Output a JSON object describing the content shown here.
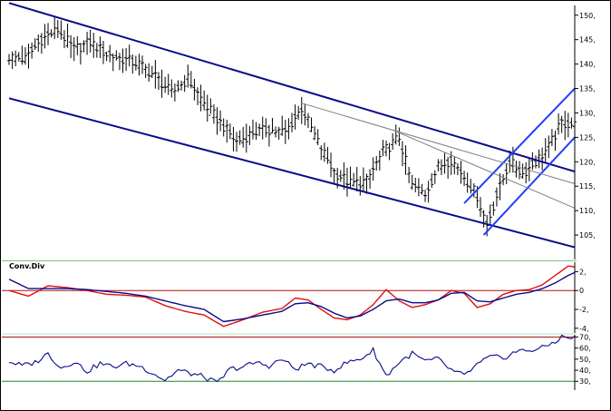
{
  "chart_data": [
    {
      "type": "ohlc",
      "title": "",
      "ylim": [
        100,
        152
      ],
      "y_ticks": [
        "150,",
        "145,",
        "140,",
        "135,",
        "130,",
        "125,",
        "120,",
        "115,",
        "110,",
        "105,"
      ],
      "y_tick_values": [
        150,
        145,
        140,
        135,
        130,
        125,
        120,
        115,
        110,
        105
      ],
      "anchors": [
        [
          0,
          141.5
        ],
        [
          5,
          141
        ],
        [
          10,
          145
        ],
        [
          15,
          147
        ],
        [
          20,
          143
        ],
        [
          25,
          144.5
        ],
        [
          30,
          142
        ],
        [
          35,
          141
        ],
        [
          40,
          140
        ],
        [
          45,
          137.5
        ],
        [
          50,
          134
        ],
        [
          55,
          137
        ],
        [
          60,
          132
        ],
        [
          65,
          128
        ],
        [
          70,
          124
        ],
        [
          75,
          126
        ],
        [
          80,
          126.5
        ],
        [
          85,
          126
        ],
        [
          90,
          131
        ],
        [
          95,
          124
        ],
        [
          100,
          118
        ],
        [
          105,
          115.5
        ],
        [
          110,
          116
        ],
        [
          115,
          122
        ],
        [
          120,
          125
        ],
        [
          124,
          115
        ],
        [
          128,
          113.5
        ],
        [
          132,
          119
        ],
        [
          136,
          120.5
        ],
        [
          140,
          117
        ],
        [
          144,
          113
        ],
        [
          147,
          107
        ],
        [
          150,
          113
        ],
        [
          154,
          120
        ],
        [
          158,
          117.5
        ],
        [
          162,
          120
        ],
        [
          166,
          123
        ],
        [
          170,
          128
        ],
        [
          174,
          127.5
        ]
      ],
      "channels": [
        {
          "name": "main-upper",
          "color": "#0a0a8a",
          "points": [
            [
              0,
              152.5
            ],
            [
              174,
              118
            ]
          ]
        },
        {
          "name": "main-lower",
          "color": "#0a0a8a",
          "points": [
            [
              0,
              133
            ],
            [
              174,
              102.5
            ]
          ]
        },
        {
          "name": "short-upper",
          "color": "#1f3fff",
          "points": [
            [
              140,
              111.5
            ],
            [
              174,
              135
            ]
          ]
        },
        {
          "name": "short-lower",
          "color": "#1f3fff",
          "points": [
            [
              146,
              105
            ],
            [
              174,
              125
            ]
          ]
        },
        {
          "name": "trend-1",
          "color": "#808080",
          "points": [
            [
              90,
              132
            ],
            [
              174,
              115.5
            ]
          ]
        },
        {
          "name": "trend-2",
          "color": "#808080",
          "points": [
            [
              118,
              126.5
            ],
            [
              174,
              110.5
            ]
          ]
        }
      ]
    },
    {
      "type": "line",
      "title": "Conv.Div",
      "ylim": [
        -4.5,
        3
      ],
      "y_ticks": [
        "2,",
        "0",
        "-2,",
        "-4,"
      ],
      "y_tick_values": [
        2,
        0,
        -2,
        -4
      ],
      "reference_lines": [
        {
          "value": 0,
          "color": "#b01515"
        }
      ],
      "series": [
        {
          "color": "#e01010",
          "anchors": [
            [
              0,
              0
            ],
            [
              6,
              -0.6
            ],
            [
              12,
              0.5
            ],
            [
              18,
              0.3
            ],
            [
              24,
              0
            ],
            [
              30,
              -0.4
            ],
            [
              36,
              -0.5
            ],
            [
              42,
              -0.7
            ],
            [
              48,
              -1.6
            ],
            [
              54,
              -2.2
            ],
            [
              60,
              -2.6
            ],
            [
              66,
              -3.8
            ],
            [
              72,
              -3.1
            ],
            [
              78,
              -2.3
            ],
            [
              84,
              -1.9
            ],
            [
              88,
              -0.8
            ],
            [
              92,
              -1.0
            ],
            [
              96,
              -2.0
            ],
            [
              100,
              -2.9
            ],
            [
              104,
              -3.1
            ],
            [
              108,
              -2.6
            ],
            [
              112,
              -1.5
            ],
            [
              116,
              0.1
            ],
            [
              120,
              -1.1
            ],
            [
              124,
              -1.8
            ],
            [
              128,
              -1.5
            ],
            [
              132,
              -1.0
            ],
            [
              136,
              0.0
            ],
            [
              140,
              -0.3
            ],
            [
              144,
              -1.8
            ],
            [
              148,
              -1.4
            ],
            [
              152,
              -0.4
            ],
            [
              156,
              0.0
            ],
            [
              160,
              0.1
            ],
            [
              164,
              0.6
            ],
            [
              168,
              1.6
            ],
            [
              172,
              2.6
            ],
            [
              174,
              2.5
            ]
          ]
        },
        {
          "color": "#0a0a8a",
          "anchors": [
            [
              0,
              1.2
            ],
            [
              6,
              0.2
            ],
            [
              12,
              0.2
            ],
            [
              18,
              0.2
            ],
            [
              24,
              0.1
            ],
            [
              30,
              -0.1
            ],
            [
              36,
              -0.3
            ],
            [
              42,
              -0.6
            ],
            [
              48,
              -1.1
            ],
            [
              54,
              -1.6
            ],
            [
              60,
              -2.0
            ],
            [
              66,
              -3.3
            ],
            [
              72,
              -3.0
            ],
            [
              78,
              -2.6
            ],
            [
              84,
              -2.2
            ],
            [
              88,
              -1.4
            ],
            [
              92,
              -1.3
            ],
            [
              96,
              -1.7
            ],
            [
              100,
              -2.4
            ],
            [
              104,
              -2.9
            ],
            [
              108,
              -2.7
            ],
            [
              112,
              -2.0
            ],
            [
              116,
              -1.1
            ],
            [
              120,
              -0.9
            ],
            [
              124,
              -1.3
            ],
            [
              128,
              -1.3
            ],
            [
              132,
              -1.0
            ],
            [
              136,
              -0.3
            ],
            [
              140,
              -0.2
            ],
            [
              144,
              -1.1
            ],
            [
              148,
              -1.2
            ],
            [
              152,
              -0.8
            ],
            [
              156,
              -0.4
            ],
            [
              160,
              -0.2
            ],
            [
              164,
              0.2
            ],
            [
              168,
              0.8
            ],
            [
              172,
              1.6
            ],
            [
              174,
              1.9
            ]
          ]
        }
      ]
    },
    {
      "type": "line",
      "title": "",
      "ylim": [
        22,
        72
      ],
      "y_ticks": [
        "70,",
        "60,",
        "50,",
        "40,",
        "30,"
      ],
      "y_tick_values": [
        70,
        60,
        50,
        40,
        30
      ],
      "reference_lines": [
        {
          "value": 70,
          "color": "#b01515"
        },
        {
          "value": 30,
          "color": "#1c8a1c"
        }
      ],
      "series": [
        {
          "color": "#0a0a8a",
          "anchors": [
            [
              0,
              48
            ],
            [
              4,
              44
            ],
            [
              8,
              47
            ],
            [
              12,
              55
            ],
            [
              16,
              42
            ],
            [
              20,
              48
            ],
            [
              24,
              39
            ],
            [
              28,
              46
            ],
            [
              32,
              43
            ],
            [
              36,
              46
            ],
            [
              40,
              44
            ],
            [
              44,
              38
            ],
            [
              48,
              31
            ],
            [
              52,
              40
            ],
            [
              56,
              37
            ],
            [
              60,
              34
            ],
            [
              64,
              28
            ],
            [
              68,
              41
            ],
            [
              72,
              43
            ],
            [
              76,
              47
            ],
            [
              80,
              44
            ],
            [
              84,
              50
            ],
            [
              88,
              41
            ],
            [
              92,
              46
            ],
            [
              96,
              43
            ],
            [
              100,
              40
            ],
            [
              104,
              47
            ],
            [
              108,
              50
            ],
            [
              112,
              58
            ],
            [
              116,
              35
            ],
            [
              120,
              47
            ],
            [
              124,
              55
            ],
            [
              128,
              48
            ],
            [
              132,
              50
            ],
            [
              136,
              40
            ],
            [
              140,
              35
            ],
            [
              144,
              45
            ],
            [
              148,
              52
            ],
            [
              152,
              51
            ],
            [
              156,
              57
            ],
            [
              160,
              58
            ],
            [
              164,
              60
            ],
            [
              168,
              66
            ],
            [
              170,
              70
            ],
            [
              174,
              69
            ]
          ]
        }
      ]
    }
  ]
}
